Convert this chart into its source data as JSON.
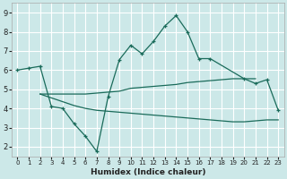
{
  "xlabel": "Humidex (Indice chaleur)",
  "background_color": "#cce8e8",
  "grid_color": "#ffffff",
  "line_color": "#1a6b5a",
  "xlim": [
    -0.5,
    23.5
  ],
  "ylim": [
    1.5,
    9.5
  ],
  "xticks": [
    0,
    1,
    2,
    3,
    4,
    5,
    6,
    7,
    8,
    9,
    10,
    11,
    12,
    13,
    14,
    15,
    16,
    17,
    18,
    19,
    20,
    21,
    22,
    23
  ],
  "yticks": [
    2,
    3,
    4,
    5,
    6,
    7,
    8,
    9
  ],
  "line1_x": [
    0,
    1,
    2,
    3,
    4,
    5,
    6,
    7,
    8,
    9,
    10,
    11,
    12,
    13,
    14,
    15,
    16,
    17,
    20,
    21,
    22,
    23
  ],
  "line1_y": [
    6.0,
    6.1,
    6.2,
    4.1,
    4.0,
    3.2,
    2.55,
    1.75,
    4.6,
    6.55,
    7.3,
    6.85,
    7.5,
    8.3,
    8.85,
    8.0,
    6.6,
    6.6,
    5.55,
    5.3,
    5.5,
    3.9
  ],
  "line2_x": [
    2,
    3,
    4,
    5,
    6,
    7,
    8,
    9,
    10,
    11,
    12,
    13,
    14,
    15,
    16,
    17,
    18,
    19,
    20,
    21
  ],
  "line2_y": [
    4.75,
    4.75,
    4.75,
    4.75,
    4.75,
    4.8,
    4.85,
    4.9,
    5.05,
    5.1,
    5.15,
    5.2,
    5.25,
    5.35,
    5.4,
    5.45,
    5.5,
    5.55,
    5.55,
    5.55
  ],
  "line3_x": [
    2,
    3,
    4,
    5,
    6,
    7,
    8,
    9,
    10,
    11,
    12,
    13,
    14,
    15,
    16,
    17,
    18,
    19,
    20,
    21,
    22,
    23
  ],
  "line3_y": [
    4.75,
    4.55,
    4.35,
    4.15,
    4.0,
    3.9,
    3.85,
    3.8,
    3.75,
    3.7,
    3.65,
    3.6,
    3.55,
    3.5,
    3.45,
    3.4,
    3.35,
    3.3,
    3.3,
    3.35,
    3.4,
    3.4
  ]
}
